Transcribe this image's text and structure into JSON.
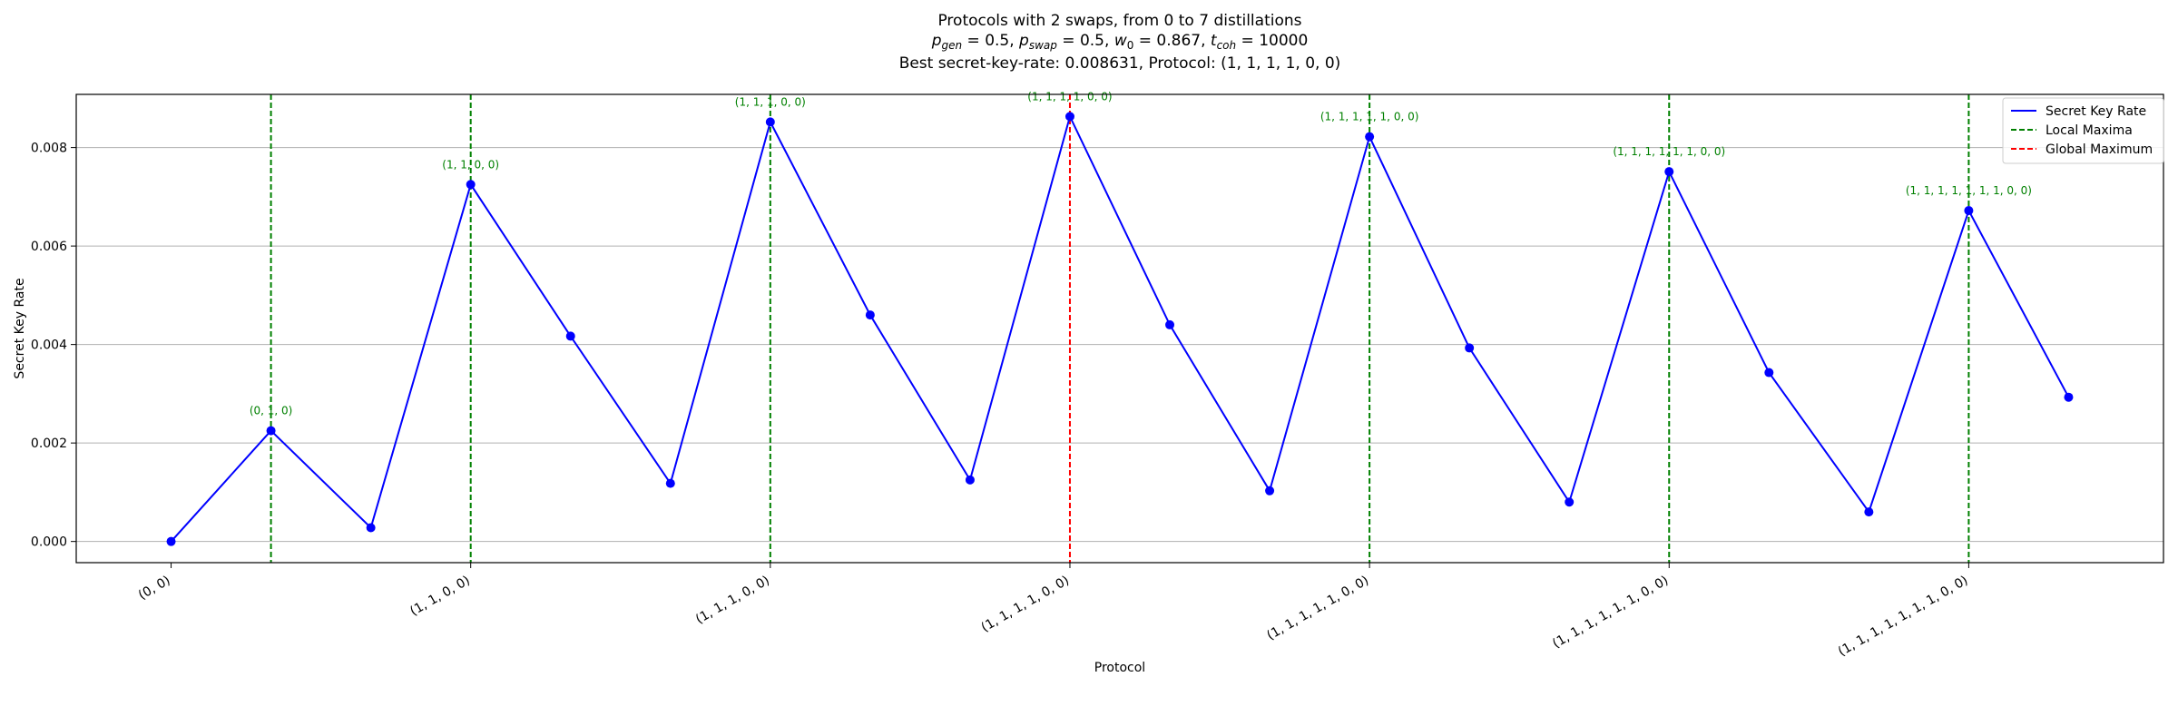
{
  "chart_data": {
    "type": "line",
    "title": "Protocols with 2 swaps, from 0 to 7 distillations",
    "subtitle_parts": {
      "p_gen": "0.5",
      "p_swap": "0.5",
      "w_0": "0.867",
      "t_coh": "10000"
    },
    "best_line": "Best secret-key-rate: 0.008631, Protocol: (1, 1, 1, 1, 0, 0)",
    "xlabel": "Protocol",
    "ylabel": "Secret Key Rate",
    "x_tick_labels": [
      "(0, 0)",
      "(1, 1, 0, 0)",
      "(1, 1, 1, 0, 0)",
      "(1, 1, 1, 1, 0, 0)",
      "(1, 1, 1, 1, 1, 0, 0)",
      "(1, 1, 1, 1, 1, 1, 0, 0)",
      "(1, 1, 1, 1, 1, 1, 1, 0, 0)"
    ],
    "x_tick_positions": [
      0,
      3,
      6,
      9,
      12,
      15,
      18
    ],
    "y_ticks": [
      "0.000",
      "0.002",
      "0.004",
      "0.006",
      "0.008"
    ],
    "y_tick_values": [
      0,
      0.002,
      0.004,
      0.006,
      0.008
    ],
    "ylim": [
      -0.00043,
      0.00908
    ],
    "xlim": [
      -0.95,
      19.95
    ],
    "grid": "horizontal",
    "series": [
      {
        "name": "Secret Key Rate",
        "color": "#0000ff",
        "values": [
          0.0,
          0.00225,
          0.00028,
          0.00725,
          0.00417,
          0.00118,
          0.00852,
          0.0046,
          0.00125,
          0.008631,
          0.0044,
          0.00103,
          0.00822,
          0.00393,
          0.0008,
          0.00751,
          0.00343,
          0.0006,
          0.00672,
          0.00293
        ]
      }
    ],
    "local_maxima": [
      1,
      3,
      6,
      12,
      15,
      18
    ],
    "global_maximum": 9,
    "local_maxima_color": "#008000",
    "global_maximum_color": "#ff0000",
    "annotations": [
      {
        "index": 1,
        "text": "(0, 1, 0)"
      },
      {
        "index": 3,
        "text": "(1, 1, 0, 0)"
      },
      {
        "index": 6,
        "text": "(1, 1, 1, 0, 0)"
      },
      {
        "index": 9,
        "text": "(1, 1, 1, 1, 0, 0)"
      },
      {
        "index": 12,
        "text": "(1, 1, 1, 1, 1, 0, 0)"
      },
      {
        "index": 15,
        "text": "(1, 1, 1, 1, 1, 1, 0, 0)"
      },
      {
        "index": 18,
        "text": "(1, 1, 1, 1, 1, 1, 1, 0, 0)"
      }
    ],
    "legend": {
      "placement": "upper-right",
      "entries": [
        {
          "label": "Secret Key Rate",
          "color": "#0000ff",
          "style": "solid"
        },
        {
          "label": "Local Maxima",
          "color": "#008000",
          "style": "dashed"
        },
        {
          "label": "Global Maximum",
          "color": "#ff0000",
          "style": "dashed"
        }
      ]
    }
  }
}
